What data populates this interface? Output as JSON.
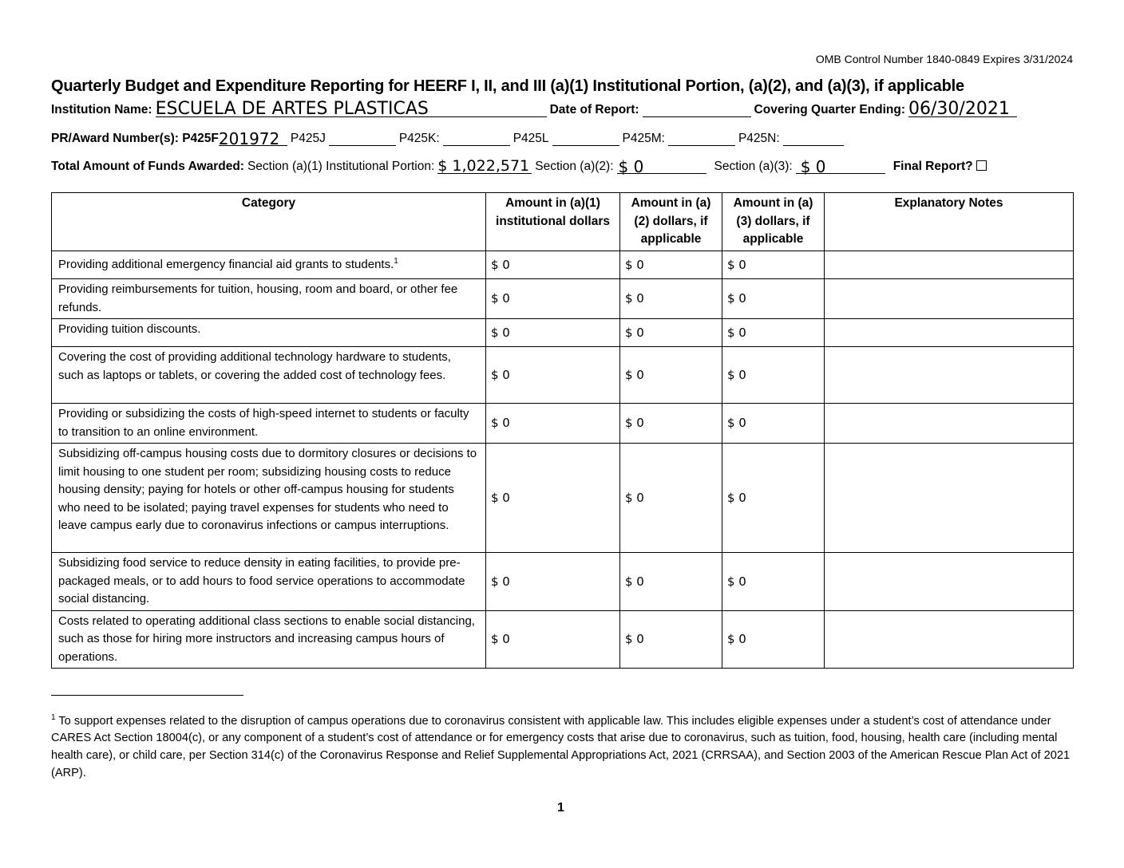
{
  "header": {
    "omb": "OMB Control Number 1840-0849 Expires 3/31/2024",
    "title": "Quarterly Budget and Expenditure Reporting for HEERF I, II, and III (a)(1) Institutional Portion, (a)(2), and (a)(3), if applicable"
  },
  "fields": {
    "institution_label": "Institution Name:",
    "institution_value": "ESCUELA DE ARTES PLASTICAS",
    "date_label": "Date of Report:",
    "quarter_label": "Covering Quarter Ending:",
    "quarter_value": "06/30/2021",
    "award_label": "PR/Award Number(s): P425F",
    "award_value": "201972",
    "p425j": "P425J",
    "p425k": "P425K:",
    "p425l": "P425L",
    "p425m": "P425M:",
    "p425n": "P425N:",
    "total_label": "Total Amount of Funds Awarded:",
    "a1_label": "Section (a)(1) Institutional Portion:",
    "a1_value": "$ 1,022,571",
    "a2_label": "Section (a)(2):",
    "a2_value": "$ 0",
    "a3_label": "Section (a)(3):",
    "a3_value": "$ 0",
    "final_label": "Final Report?"
  },
  "table": {
    "columns": [
      "Category",
      "Amount in (a)(1) institutional dollars",
      "Amount in (a)(2) dollars, if applicable",
      "Amount in (a)(3) dollars, if applicable",
      "Explanatory Notes"
    ],
    "rows": [
      [
        "Providing additional emergency financial aid grants to students.",
        "$ 0",
        "$ 0",
        "$ 0"
      ],
      [
        "Providing reimbursements for tuition, housing, room and board, or other fee refunds.",
        "$ 0",
        "$ 0",
        "$ 0"
      ],
      [
        "Providing tuition discounts.",
        "$ 0",
        "$ 0",
        "$ 0"
      ],
      [
        "Covering the cost of providing additional technology hardware to students, such as laptops or tablets, or covering the added cost of technology fees.",
        "$ 0",
        "$ 0",
        "$ 0"
      ],
      [
        "Providing or subsidizing the costs of high-speed internet to students or faculty to transition to an online environment.",
        "$ 0",
        "$ 0",
        "$ 0"
      ],
      [
        "Subsidizing off-campus housing costs due to dormitory closures or decisions to limit housing to one student per room; subsidizing housing costs to reduce housing density; paying for hotels or other off-campus housing for students who need to be isolated; paying travel expenses for students who need to leave campus early due to coronavirus infections or campus interruptions.",
        "$ 0",
        "$ 0",
        "$ 0"
      ],
      [
        "Subsidizing food service to reduce density in eating facilities, to provide pre-packaged meals, or to add hours to food service operations to accommodate social distancing.",
        "$ 0",
        "$ 0",
        "$ 0"
      ],
      [
        "Costs related to operating additional class sections to enable social distancing, such as those for hiring more instructors and increasing campus hours of operations.",
        "$ 0",
        "$ 0",
        "$ 0"
      ]
    ]
  },
  "footnote": {
    "mark": "1",
    "text": "To support expenses related to the disruption of campus operations due to coronavirus consistent with applicable law. This includes eligible expenses under a student’s cost of attendance under CARES Act Section 18004(c), or any component of a student’s cost of attendance or for emergency costs that arise due to coronavirus, such as tuition, food, housing, health care (including mental health care), or child care, per Section 314(c) of the Coronavirus Response and Relief Supplemental Appropriations Act, 2021 (CRRSAA), and Section 2003 of the American Rescue Plan Act of 2021 (ARP)."
  },
  "page_number": "1"
}
